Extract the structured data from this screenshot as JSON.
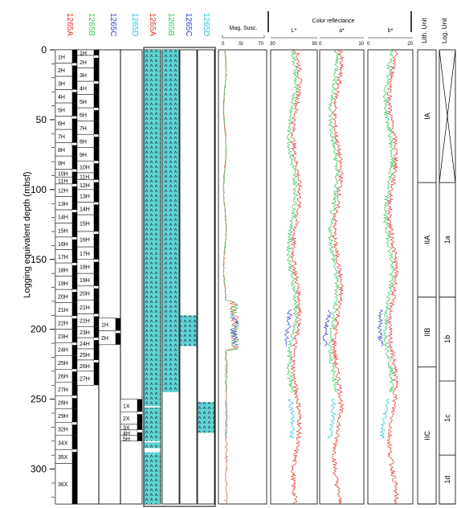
{
  "y_axis": {
    "label": "Logging equivalent depth (mbsf)",
    "min": 0,
    "max": 325,
    "ticks": [
      0,
      50,
      100,
      150,
      200,
      250,
      300
    ]
  },
  "colors": {
    "1265A": "#e8312a",
    "1265B": "#34c759",
    "1265C": "#2b3fd6",
    "1265D": "#27c6d6",
    "lith_fill": "#5fd3d6",
    "core_black": "#000000"
  },
  "core_columns": [
    {
      "site": "1265A",
      "color_key": "1265A"
    },
    {
      "site": "1265B",
      "color_key": "1265B"
    },
    {
      "site": "1265C",
      "color_key": "1265C"
    },
    {
      "site": "1265D",
      "color_key": "1265D"
    }
  ],
  "lith_columns": [
    {
      "site": "1265A",
      "color_key": "1265A"
    },
    {
      "site": "1265B",
      "color_key": "1265B"
    },
    {
      "site": "1265C",
      "color_key": "1265C"
    },
    {
      "site": "1265D",
      "color_key": "1265D"
    }
  ],
  "cores": {
    "1265A": [
      {
        "label": "1H",
        "top": 0,
        "bot": 9.5
      },
      {
        "label": "2H",
        "top": 9.5,
        "bot": 19
      },
      {
        "label": "3H",
        "top": 19,
        "bot": 28.5
      },
      {
        "label": "4H",
        "top": 28.5,
        "bot": 38
      },
      {
        "label": "5H",
        "top": 38,
        "bot": 47.5
      },
      {
        "label": "6H",
        "top": 47.5,
        "bot": 57
      },
      {
        "label": "7H",
        "top": 57,
        "bot": 66.5
      },
      {
        "label": "8H",
        "top": 66.5,
        "bot": 76
      },
      {
        "label": "9H",
        "top": 76,
        "bot": 85.5
      },
      {
        "label": "10H",
        "top": 85.5,
        "bot": 91
      },
      {
        "label": "11H",
        "top": 91,
        "bot": 96
      },
      {
        "label": "12H",
        "top": 96,
        "bot": 105
      },
      {
        "label": "13H",
        "top": 105,
        "bot": 114.5
      },
      {
        "label": "14H",
        "top": 114.5,
        "bot": 124
      },
      {
        "label": "15H",
        "top": 124,
        "bot": 134
      },
      {
        "label": "16H",
        "top": 134,
        "bot": 143
      },
      {
        "label": "17H",
        "top": 143,
        "bot": 152.5
      },
      {
        "label": "18H",
        "top": 152.5,
        "bot": 162
      },
      {
        "label": "19H",
        "top": 162,
        "bot": 171.5
      },
      {
        "label": "20H",
        "top": 171.5,
        "bot": 181
      },
      {
        "label": "21H",
        "top": 181,
        "bot": 190.5
      },
      {
        "label": "22H",
        "top": 190.5,
        "bot": 200
      },
      {
        "label": "23H",
        "top": 200,
        "bot": 209.5
      },
      {
        "label": "24H",
        "top": 209.5,
        "bot": 219
      },
      {
        "label": "25H",
        "top": 219,
        "bot": 228.5
      },
      {
        "label": "26H",
        "top": 228.5,
        "bot": 238
      },
      {
        "label": "27H",
        "top": 238,
        "bot": 247.5
      },
      {
        "label": "28H",
        "top": 247.5,
        "bot": 257
      },
      {
        "label": "29H",
        "top": 257,
        "bot": 266.5
      },
      {
        "label": "32H",
        "top": 266.5,
        "bot": 276
      },
      {
        "label": "34X",
        "top": 276,
        "bot": 286
      },
      {
        "label": "35X",
        "top": 286,
        "bot": 296
      },
      {
        "label": "36X",
        "top": 296,
        "bot": 325
      }
    ],
    "1265B": [
      {
        "label": "1H",
        "top": 0,
        "bot": 4
      },
      {
        "label": "2H",
        "top": 4,
        "bot": 13
      },
      {
        "label": "3H",
        "top": 13,
        "bot": 22.5
      },
      {
        "label": "4H",
        "top": 22.5,
        "bot": 32
      },
      {
        "label": "5H",
        "top": 32,
        "bot": 41.5
      },
      {
        "label": "6H",
        "top": 41.5,
        "bot": 51
      },
      {
        "label": "7H",
        "top": 51,
        "bot": 60.5
      },
      {
        "label": "8H",
        "top": 60.5,
        "bot": 70
      },
      {
        "label": "9H",
        "top": 70,
        "bot": 79.5
      },
      {
        "label": "10H",
        "top": 79.5,
        "bot": 88
      },
      {
        "label": "11H",
        "top": 88,
        "bot": 93
      },
      {
        "label": "12H",
        "top": 93,
        "bot": 100
      },
      {
        "label": "13H",
        "top": 100,
        "bot": 109
      },
      {
        "label": "14H",
        "top": 109,
        "bot": 118
      },
      {
        "label": "15H",
        "top": 118,
        "bot": 130
      },
      {
        "label": "16H",
        "top": 130,
        "bot": 141
      },
      {
        "label": "17H",
        "top": 141,
        "bot": 150
      },
      {
        "label": "18H",
        "top": 150,
        "bot": 160
      },
      {
        "label": "19H",
        "top": 160,
        "bot": 169
      },
      {
        "label": "20H",
        "top": 169,
        "bot": 179
      },
      {
        "label": "21H",
        "top": 179,
        "bot": 189
      },
      {
        "label": "22H",
        "top": 189,
        "bot": 198
      },
      {
        "label": "23H",
        "top": 198,
        "bot": 206
      },
      {
        "label": "24H",
        "top": 206,
        "bot": 214
      },
      {
        "label": "25H",
        "top": 214,
        "bot": 222
      },
      {
        "label": "26H",
        "top": 222,
        "bot": 230
      },
      {
        "label": "27H",
        "top": 230,
        "bot": 240
      }
    ],
    "1265C": [
      {
        "label": "1H",
        "top": 192,
        "bot": 201
      },
      {
        "label": "2H",
        "top": 201,
        "bot": 211
      }
    ],
    "1265D": [
      {
        "label": "1X",
        "top": 250,
        "bot": 259
      },
      {
        "label": "2X",
        "top": 259,
        "bot": 268
      },
      {
        "label": "3X",
        "top": 268,
        "bot": 272
      },
      {
        "label": "4H",
        "top": 272,
        "bot": 276
      },
      {
        "label": "5H",
        "top": 276,
        "bot": 280
      }
    ]
  },
  "lith_intervals": {
    "1265A": [
      [
        0,
        255
      ],
      [
        256,
        280
      ],
      [
        281,
        285
      ],
      [
        288,
        325
      ]
    ],
    "1265B": [
      [
        0,
        245
      ]
    ],
    "1265C": [
      [
        190,
        212
      ]
    ],
    "1265D": [
      [
        252,
        274
      ]
    ]
  },
  "mag_susc": {
    "label": "Mag. Susc.",
    "unit": "SI",
    "scale_ticks": [
      "0",
      "SI",
      "70"
    ],
    "range": [
      0,
      70
    ]
  },
  "color_reflectance": {
    "group_label": "Color reflectance",
    "panels": [
      {
        "label": "L*",
        "tick_left": "30",
        "tick_right": "90",
        "range": [
          30,
          90
        ]
      },
      {
        "label": "a*",
        "tick_left": "0",
        "tick_right": "10",
        "range": [
          0,
          10
        ]
      },
      {
        "label": "b*",
        "tick_left": "0",
        "tick_right": "20",
        "range": [
          0,
          20
        ]
      }
    ]
  },
  "lith_unit": {
    "label": "Lith. Unit",
    "units": [
      {
        "name": "IA",
        "top": 0,
        "bot": 95
      },
      {
        "name": "IIA",
        "top": 95,
        "bot": 177
      },
      {
        "name": "IIB",
        "top": 177,
        "bot": 227
      },
      {
        "name": "IIC",
        "top": 227,
        "bot": 325
      }
    ]
  },
  "log_unit": {
    "label": "Log. Unit",
    "units": [
      {
        "name": "",
        "top": 0,
        "bot": 95,
        "crossed": true
      },
      {
        "name": "1a",
        "top": 95,
        "bot": 177
      },
      {
        "name": "1b",
        "top": 177,
        "bot": 237
      },
      {
        "name": "1c",
        "top": 237,
        "bot": 290
      },
      {
        "name": "1d",
        "top": 290,
        "bot": 325
      }
    ]
  }
}
